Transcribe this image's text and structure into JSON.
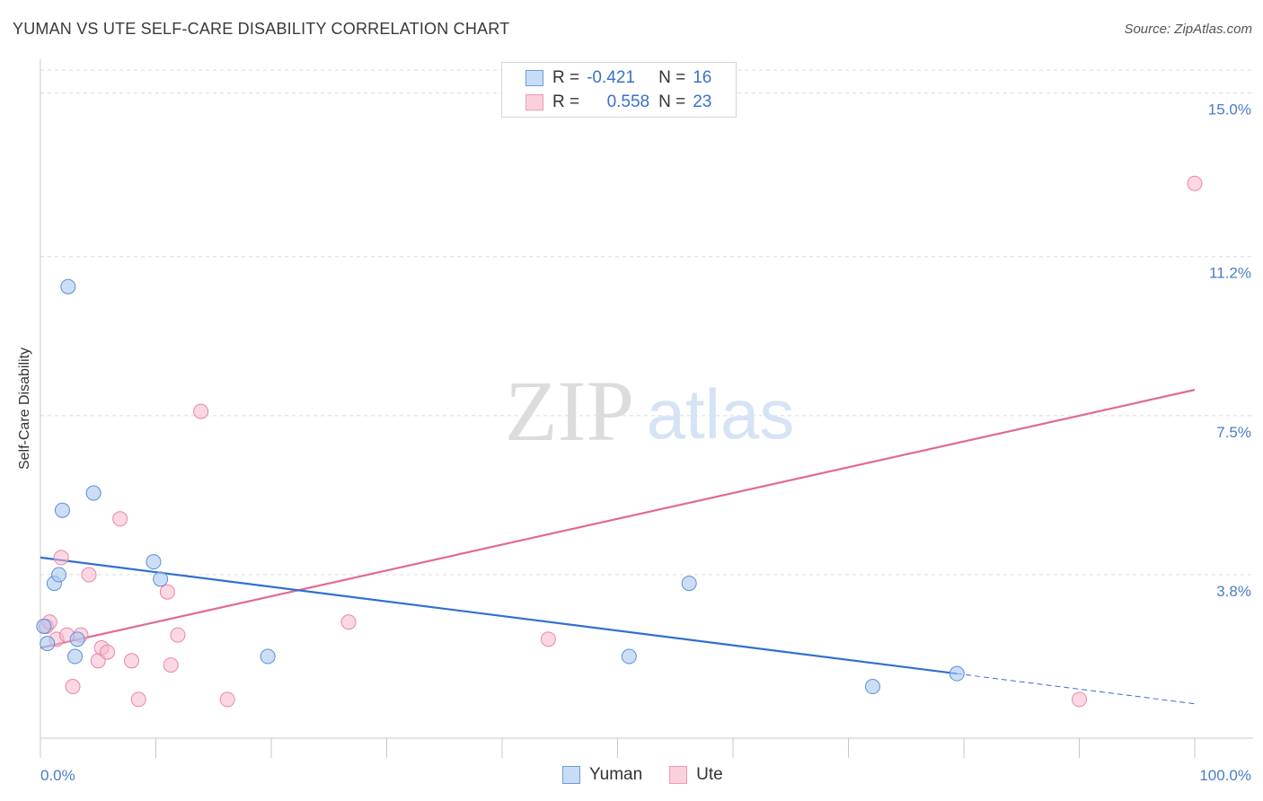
{
  "title": "YUMAN VS UTE SELF-CARE DISABILITY CORRELATION CHART",
  "source": "Source: ZipAtlas.com",
  "watermark": {
    "zip": "ZIP",
    "atlas": "atlas"
  },
  "legend": {
    "rows": [
      {
        "r_label": "R =",
        "r_value": "-0.421",
        "n_label": "N =",
        "n_value": "16"
      },
      {
        "r_label": "R =",
        "r_value": "0.558",
        "n_label": "N =",
        "n_value": "23"
      }
    ]
  },
  "colors": {
    "yuman_fill": "#aac8f0",
    "yuman_stroke": "#5b8fd6",
    "yuman_line": "#3070d0",
    "ute_fill": "#f7b8cc",
    "ute_stroke": "#e985a6",
    "ute_line": "#e06a94",
    "tick": "#4a7cc7"
  },
  "chart_data": {
    "type": "scatter",
    "title": "YUMAN VS UTE SELF-CARE DISABILITY CORRELATION CHART",
    "xlabel": "",
    "ylabel": "Self-Care Disability",
    "xlim": [
      0,
      100
    ],
    "ylim": [
      0,
      15.6
    ],
    "y_ticks": [
      3.8,
      7.5,
      11.2,
      15.0
    ],
    "y_tick_labels": [
      "3.8%",
      "7.5%",
      "11.2%",
      "15.0%"
    ],
    "x_tick_labels": [
      "0.0%",
      "100.0%"
    ],
    "grid": true,
    "legend_position": "top-center",
    "series": [
      {
        "name": "Yuman",
        "r": -0.421,
        "n": 16,
        "points": [
          {
            "x": 0.3,
            "y": 2.6
          },
          {
            "x": 0.6,
            "y": 2.2
          },
          {
            "x": 1.2,
            "y": 3.6
          },
          {
            "x": 1.6,
            "y": 3.8
          },
          {
            "x": 1.9,
            "y": 5.3
          },
          {
            "x": 2.4,
            "y": 10.5
          },
          {
            "x": 3.0,
            "y": 1.9
          },
          {
            "x": 3.2,
            "y": 2.3
          },
          {
            "x": 4.6,
            "y": 5.7
          },
          {
            "x": 9.8,
            "y": 4.1
          },
          {
            "x": 10.4,
            "y": 3.7
          },
          {
            "x": 19.7,
            "y": 1.9
          },
          {
            "x": 51.0,
            "y": 1.9
          },
          {
            "x": 56.2,
            "y": 3.6
          },
          {
            "x": 72.1,
            "y": 1.2
          },
          {
            "x": 79.4,
            "y": 1.5
          }
        ],
        "trend": {
          "x0": 0,
          "y0": 4.2,
          "x1": 79.4,
          "y1": 1.5,
          "dashed_to_x": 100,
          "dashed_to_y": 0.8
        }
      },
      {
        "name": "Ute",
        "r": 0.558,
        "n": 23,
        "points": [
          {
            "x": 0.5,
            "y": 2.6
          },
          {
            "x": 0.8,
            "y": 2.7
          },
          {
            "x": 1.4,
            "y": 2.3
          },
          {
            "x": 1.8,
            "y": 4.2
          },
          {
            "x": 2.3,
            "y": 2.4
          },
          {
            "x": 2.8,
            "y": 1.2
          },
          {
            "x": 3.5,
            "y": 2.4
          },
          {
            "x": 4.2,
            "y": 3.8
          },
          {
            "x": 5.0,
            "y": 1.8
          },
          {
            "x": 5.3,
            "y": 2.1
          },
          {
            "x": 5.8,
            "y": 2.0
          },
          {
            "x": 6.9,
            "y": 5.1
          },
          {
            "x": 7.9,
            "y": 1.8
          },
          {
            "x": 8.5,
            "y": 0.9
          },
          {
            "x": 11.0,
            "y": 3.4
          },
          {
            "x": 11.3,
            "y": 1.7
          },
          {
            "x": 11.9,
            "y": 2.4
          },
          {
            "x": 13.9,
            "y": 7.6
          },
          {
            "x": 16.2,
            "y": 0.9
          },
          {
            "x": 26.7,
            "y": 2.7
          },
          {
            "x": 44.0,
            "y": 2.3
          },
          {
            "x": 90.0,
            "y": 0.9
          },
          {
            "x": 100.0,
            "y": 12.9
          }
        ],
        "trend": {
          "x0": 0,
          "y0": 2.1,
          "x1": 100,
          "y1": 8.1
        }
      }
    ]
  }
}
